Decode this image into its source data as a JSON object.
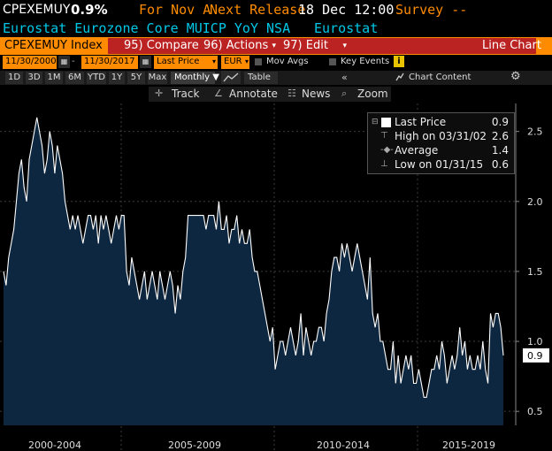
{
  "header": {
    "ticker": "CPEXEMUY",
    "last": "0.9%",
    "for_label": "For Nov A",
    "next_release": "Next Release",
    "release_time": "18 Dec 12:00",
    "survey": "Survey --",
    "description": "Eurostat Eurozone Core MUICP YoY NSA",
    "source": "Eurostat"
  },
  "toolbar": {
    "index": "CPEXEMUY Index",
    "compare": "95) Compare",
    "actions": "96) Actions",
    "edit": "97) Edit",
    "chart_type": "Line Chart"
  },
  "settings": {
    "start_date": "11/30/2000",
    "end_date": "11/30/2017",
    "field": "Last Price",
    "currency": "EUR",
    "mov_avgs": "Mov Avgs",
    "key_events": "Key Events"
  },
  "ranges": [
    "1D",
    "3D",
    "1M",
    "6M",
    "YTD",
    "1Y",
    "5Y",
    "Max"
  ],
  "range_controls": {
    "frequency": "Monthly ▼",
    "table": "Table",
    "chart_content": "Chart Content"
  },
  "tools": {
    "track": "Track",
    "annotate": "Annotate",
    "news": "News",
    "zoom": "Zoom"
  },
  "legend": {
    "last_label": "Last Price",
    "last_value": "0.9",
    "high_label": "High on 03/31/02",
    "high_value": "2.6",
    "avg_label": "Average",
    "avg_value": "1.4",
    "low_label": "Low on 01/31/15",
    "low_value": "0.6"
  },
  "colors": {
    "orange": "#ff8c00",
    "line": "#ffffff",
    "fill": "#0e2740",
    "accent_text": "#00c8e6"
  },
  "chart_data": {
    "type": "area",
    "x_start": "2000-11",
    "frequency": "monthly",
    "y": [
      1.5,
      1.4,
      1.6,
      1.7,
      1.8,
      2.0,
      2.2,
      2.3,
      2.1,
      2.0,
      2.3,
      2.4,
      2.5,
      2.6,
      2.5,
      2.4,
      2.2,
      2.3,
      2.5,
      2.4,
      2.2,
      2.4,
      2.3,
      2.2,
      2.0,
      1.9,
      1.8,
      1.9,
      1.8,
      1.9,
      1.8,
      1.7,
      1.8,
      1.9,
      1.9,
      1.8,
      1.9,
      1.7,
      1.9,
      1.8,
      1.9,
      1.8,
      1.7,
      1.8,
      1.9,
      1.8,
      1.9,
      1.9,
      1.5,
      1.4,
      1.6,
      1.5,
      1.4,
      1.3,
      1.4,
      1.5,
      1.3,
      1.4,
      1.5,
      1.4,
      1.3,
      1.5,
      1.4,
      1.3,
      1.4,
      1.5,
      1.4,
      1.2,
      1.4,
      1.3,
      1.5,
      1.6,
      1.9,
      1.9,
      1.9,
      1.9,
      1.9,
      1.9,
      1.9,
      1.8,
      1.9,
      1.9,
      1.9,
      1.8,
      2.0,
      1.8,
      1.8,
      1.9,
      1.7,
      1.8,
      1.8,
      1.9,
      1.7,
      1.8,
      1.7,
      1.7,
      1.8,
      1.6,
      1.5,
      1.5,
      1.4,
      1.3,
      1.2,
      1.1,
      1.0,
      1.1,
      0.8,
      0.9,
      1.0,
      1.0,
      0.9,
      1.0,
      1.1,
      1.0,
      0.9,
      1.0,
      1.2,
      0.9,
      1.1,
      1.0,
      0.9,
      1.0,
      1.0,
      1.1,
      1.1,
      1.0,
      1.2,
      1.3,
      1.5,
      1.6,
      1.6,
      1.5,
      1.7,
      1.6,
      1.7,
      1.6,
      1.5,
      1.6,
      1.7,
      1.6,
      1.5,
      1.4,
      1.3,
      1.6,
      1.2,
      1.1,
      1.2,
      1.0,
      1.0,
      0.9,
      0.8,
      0.8,
      1.0,
      0.7,
      0.9,
      0.7,
      0.8,
      0.9,
      0.8,
      0.9,
      0.7,
      0.7,
      0.8,
      0.7,
      0.6,
      0.6,
      0.7,
      0.8,
      0.8,
      0.9,
      0.8,
      1.0,
      0.9,
      0.7,
      0.8,
      0.9,
      0.8,
      0.9,
      1.1,
      0.9,
      1.0,
      0.8,
      0.9,
      0.8,
      0.8,
      0.9,
      0.8,
      1.0,
      0.8,
      0.7,
      1.2,
      1.1,
      1.2,
      1.2,
      1.1,
      0.9
    ],
    "ylim": [
      0.4,
      2.7
    ],
    "yticks": [
      "2.5",
      "2.0",
      "1.5",
      "1.0",
      "0.5"
    ],
    "ytick_values": [
      2.5,
      2.0,
      1.5,
      1.0,
      0.5
    ],
    "xlabels": [
      "2000-2004",
      "2005-2009",
      "2010-2014",
      "2015-2019"
    ],
    "last_tag": "0.9",
    "grid": true
  }
}
